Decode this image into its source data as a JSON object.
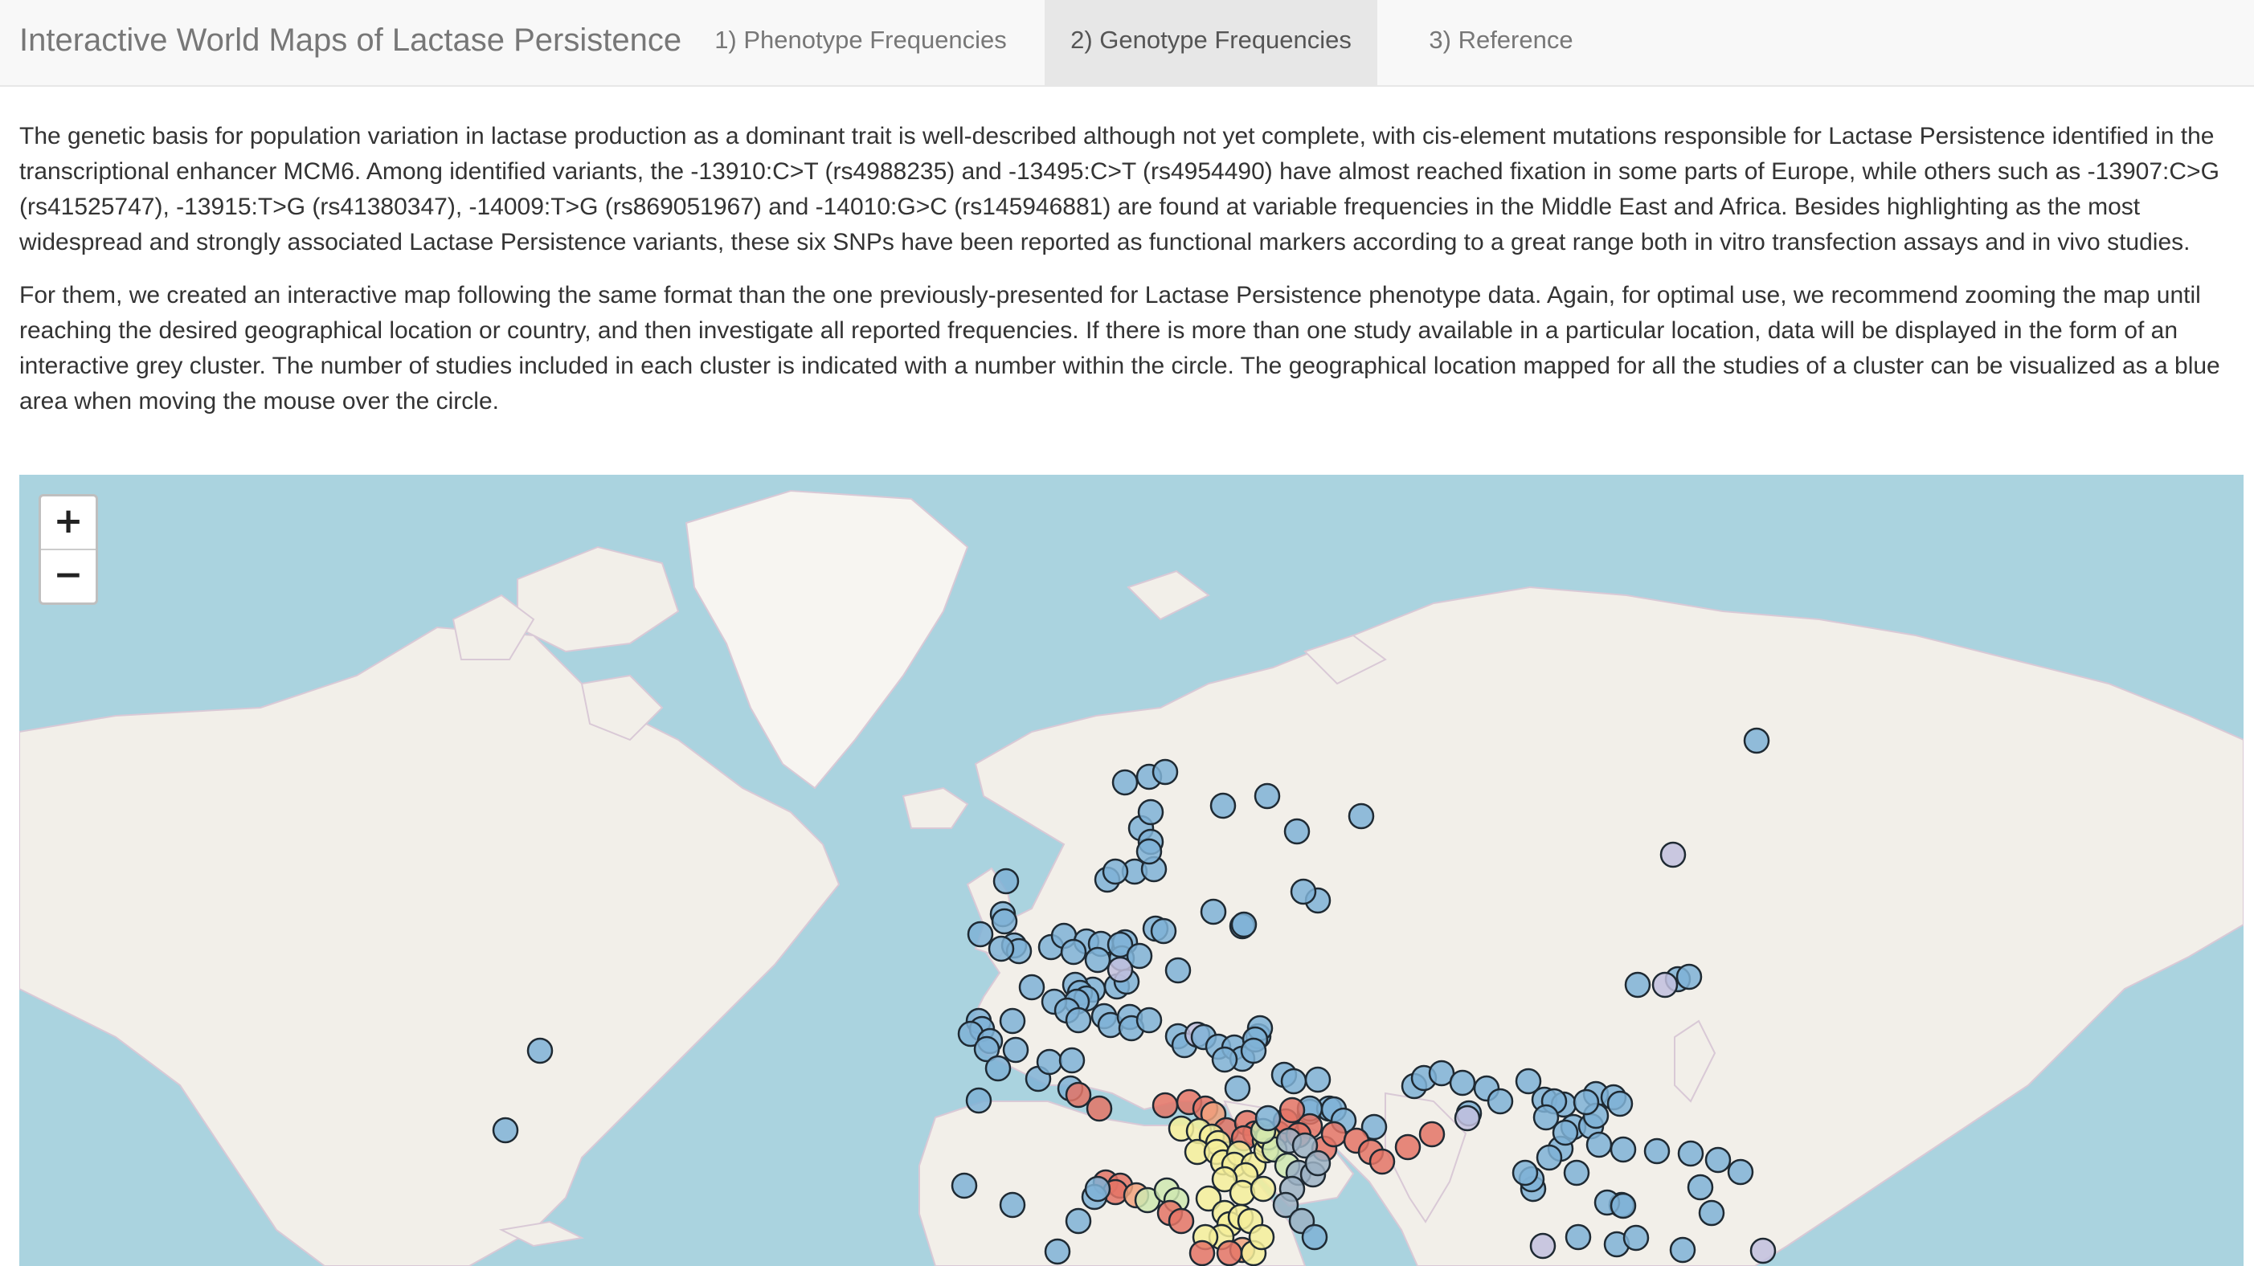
{
  "app": {
    "title": "Interactive World Maps of Lactase Persistence",
    "tabs": [
      {
        "label": "1) Phenotype Frequencies",
        "active": false
      },
      {
        "label": "2) Genotype Frequencies",
        "active": true
      },
      {
        "label": "3) Reference",
        "active": false
      }
    ]
  },
  "content": {
    "paragraph1": "The genetic basis for population variation in lactase production as a dominant trait is well-described although not yet complete, with cis-element mutations responsible for Lactase Persistence identified in the transcriptional enhancer MCM6. Among identified variants, the -13910:C>T (rs4988235) and -13495:C>T (rs4954490) have almost reached fixation in some parts of Europe, while others such as -13907:C>G (rs41525747), -13915:T>G (rs41380347), -14009:T>G (rs869051967) and -14010:G>C (rs145946881) are found at variable frequencies in the Middle East and Africa. Besides highlighting as the most widespread and strongly associated Lactase Persistence variants, these six SNPs have been reported as functional markers according to a great range both in vitro transfection assays and in vivo studies.",
    "paragraph2": "For them, we created an interactive map following the same format than the one previously-presented for Lactase Persistence phenotype data. Again, for optimal use, we recommend zooming the map until reaching the desired geographical location or country, and then investigate all reported frequencies. If there is more than one study available in a particular location, data will be displayed in the form of an interactive grey cluster. The number of studies included in each cluster is indicated with a number within the circle. The geographical location mapped for all the studies of a cluster can be visualized as a blue area when moving the mouse over the circle."
  },
  "map": {
    "zoom_in_label": "+",
    "zoom_out_label": "−",
    "colors": {
      "water": "#aad3df",
      "land": "#f2efe9",
      "ice": "#ffffff",
      "marker_blue": "#7fb2d6",
      "marker_lavender": "#c2bfde",
      "marker_yellow": "#f4ee9a",
      "marker_red": "#e47466",
      "marker_orange": "#f2a37e",
      "marker_green": "#cfe8b0",
      "marker_slate": "#9cb1c4"
    }
  }
}
